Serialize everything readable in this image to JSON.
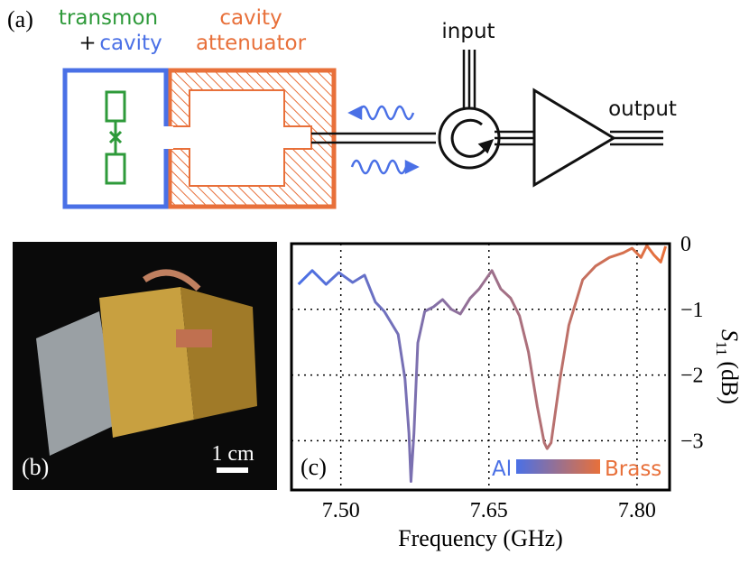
{
  "panels": {
    "a": {
      "label": "(a)",
      "transmon": "transmon",
      "plus": "+",
      "cavity": "cavity",
      "attenuator_line1": "cavity",
      "attenuator_line2": "attenuator",
      "input": "input",
      "output": "output"
    },
    "b": {
      "label": "(b)",
      "scale": "1 cm"
    }
  },
  "chart_data": {
    "type": "line",
    "panel_label": "(c)",
    "x_label": "Frequency (GHz)",
    "y_label_symbol": "S",
    "y_label_subscript": "11",
    "y_label_unit": "(dB)",
    "x": [
      7.457,
      7.471,
      7.485,
      7.498,
      7.512,
      7.524,
      7.535,
      7.544,
      7.558,
      7.565,
      7.569,
      7.571,
      7.574,
      7.578,
      7.585,
      7.594,
      7.603,
      7.612,
      7.621,
      7.631,
      7.64,
      7.653,
      7.662,
      7.672,
      7.681,
      7.69,
      7.699,
      7.706,
      7.709,
      7.713,
      7.722,
      7.731,
      7.745,
      7.758,
      7.772,
      7.786,
      7.795,
      7.804,
      7.81,
      7.817,
      7.824,
      7.829
    ],
    "values": [
      -0.62,
      -0.41,
      -0.62,
      -0.44,
      -0.59,
      -0.48,
      -0.89,
      -1.03,
      -1.38,
      -2.06,
      -2.89,
      -3.62,
      -2.89,
      -1.51,
      -1.03,
      -0.96,
      -0.85,
      -1.0,
      -1.07,
      -0.83,
      -0.69,
      -0.41,
      -0.69,
      -0.83,
      -1.1,
      -1.65,
      -2.48,
      -3.03,
      -3.12,
      -3.03,
      -2.06,
      -1.24,
      -0.55,
      -0.34,
      -0.21,
      -0.14,
      -0.07,
      -0.21,
      -0.03,
      -0.17,
      -0.28,
      -0.04
    ],
    "gradient": [
      {
        "label": "Al",
        "color": "#4a70e6"
      },
      {
        "label": "Brass",
        "color": "#e8703a"
      }
    ],
    "xlim": [
      7.45,
      7.833
    ],
    "ylim": [
      -3.75,
      0
    ],
    "xticks": [
      {
        "value": 7.5,
        "label": "7.50"
      },
      {
        "value": 7.65,
        "label": "7.65"
      },
      {
        "value": 7.8,
        "label": "7.80"
      }
    ],
    "yticks": [
      0,
      {
        "value": -1,
        "label": "−1"
      },
      {
        "value": -2,
        "label": "−2"
      },
      {
        "value": -3,
        "label": "−3"
      }
    ],
    "grid": true
  }
}
